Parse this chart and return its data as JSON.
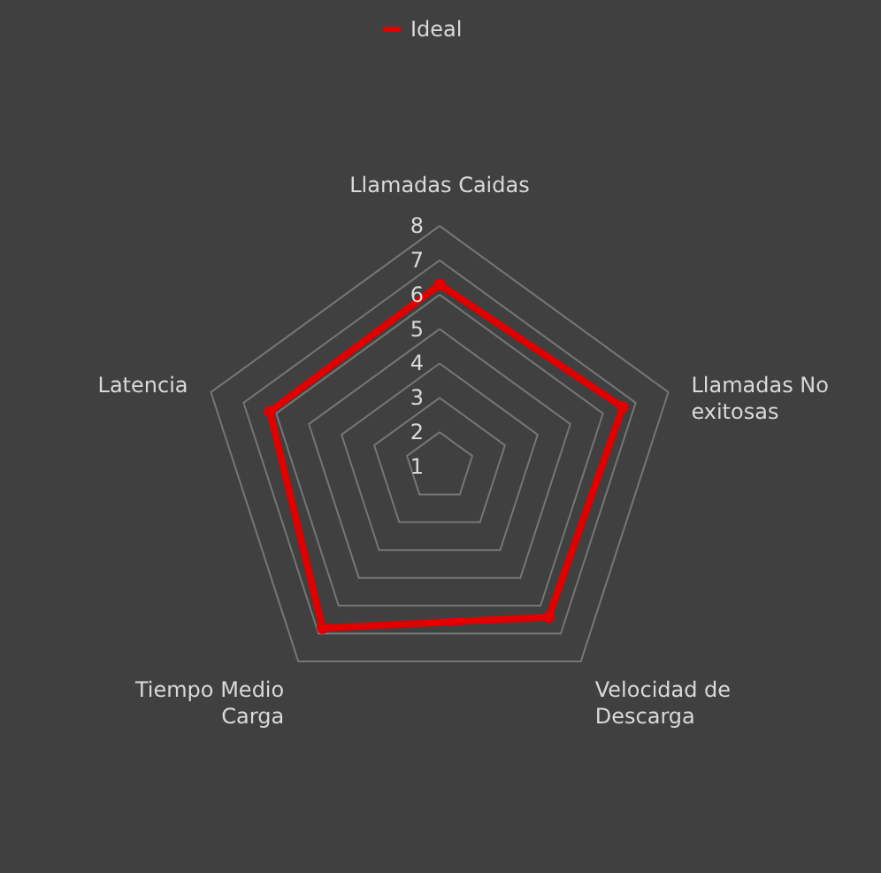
{
  "chart_data": {
    "type": "radar",
    "categories": [
      "Llamadas Caidas",
      "Llamadas No exitosas",
      "Velocidad de Descarga",
      "Tiempo Medio Carga",
      "Latencia"
    ],
    "series": [
      {
        "name": "Ideal",
        "color": "#e00000",
        "values": [
          6.3,
          6.6,
          6.4,
          6.8,
          6.2
        ]
      }
    ],
    "ylim": [
      1,
      8
    ],
    "yticks": [
      1,
      2,
      3,
      4,
      5,
      6,
      7,
      8
    ],
    "grid": true,
    "legend": "top",
    "marker": "circle",
    "line_style": "solid"
  }
}
